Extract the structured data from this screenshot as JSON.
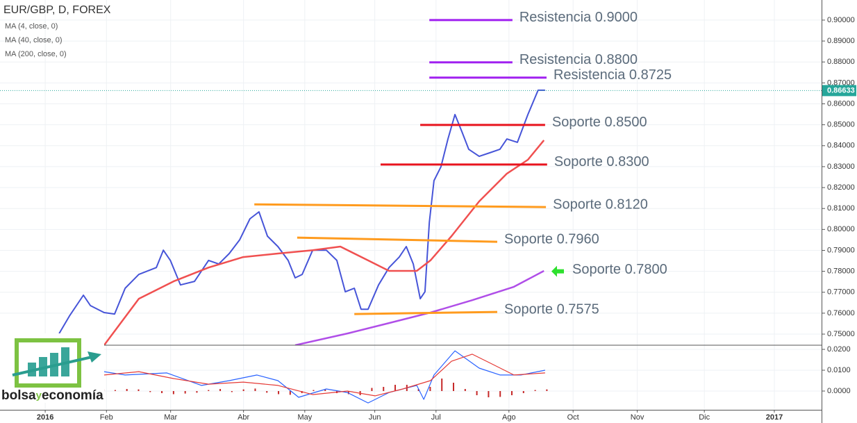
{
  "chart_data": [
    {
      "type": "line",
      "title": "EUR/GBP, D, FOREX",
      "xlim": [
        -15.5,
        266.2
      ],
      "ylim": [
        0.7447,
        0.9096
      ],
      "yticks": [
        {
          "value": 0.75,
          "label": "0.75000"
        },
        {
          "value": 0.76,
          "label": "0.76000"
        },
        {
          "value": 0.77,
          "label": "0.77000"
        },
        {
          "value": 0.78,
          "label": "0.78000"
        },
        {
          "value": 0.79,
          "label": "0.79000"
        },
        {
          "value": 0.8,
          "label": "0.80000"
        },
        {
          "value": 0.81,
          "label": "0.81000"
        },
        {
          "value": 0.82,
          "label": "0.82000"
        },
        {
          "value": 0.83,
          "label": "0.83000"
        },
        {
          "value": 0.84,
          "label": "0.84000"
        },
        {
          "value": 0.85,
          "label": "0.85000"
        },
        {
          "value": 0.86,
          "label": "0.86000"
        },
        {
          "value": 0.87,
          "label": "0.87000"
        },
        {
          "value": 0.88,
          "label": "0.88000"
        },
        {
          "value": 0.89,
          "label": "0.89000"
        },
        {
          "value": 0.9,
          "label": "0.90000"
        }
      ],
      "grid": true,
      "last_value": 0.86633,
      "last_color": "#26a69a",
      "series": [
        {
          "name": "MA (4, close, 0)",
          "color": "#4654d8",
          "x": [
            4.8,
            8.3,
            13.1,
            15.5,
            20.2,
            23.8,
            27.4,
            32.1,
            38.1,
            40.5,
            42.9,
            46.4,
            51.2,
            56,
            59.5,
            63.1,
            66.7,
            70.2,
            73.3,
            76.2,
            79.8,
            83.3,
            85.7,
            88.1,
            91.7,
            96.4,
            100,
            102.9,
            106,
            108.3,
            110.7,
            114.3,
            117.9,
            121.4,
            123.8,
            126.2,
            128.6,
            130.2,
            131.7,
            133.3,
            135.7,
            138.1,
            140.5,
            142.9,
            145.2,
            148.8,
            152.4,
            155.9,
            158.3,
            161.9,
            165.5,
            169,
            171.4
          ],
          "values": [
            0.7503,
            0.7586,
            0.7686,
            0.7636,
            0.7603,
            0.7596,
            0.7719,
            0.7785,
            0.7818,
            0.7901,
            0.7852,
            0.7735,
            0.7752,
            0.7852,
            0.7835,
            0.7885,
            0.7951,
            0.8051,
            0.8084,
            0.7968,
            0.7918,
            0.7852,
            0.7769,
            0.7785,
            0.7901,
            0.7901,
            0.7852,
            0.7702,
            0.7719,
            0.7619,
            0.7619,
            0.7735,
            0.7818,
            0.7868,
            0.7918,
            0.7835,
            0.7669,
            0.7702,
            0.8034,
            0.8233,
            0.83,
            0.8432,
            0.8549,
            0.8466,
            0.8383,
            0.8349,
            0.8366,
            0.8383,
            0.8432,
            0.8416,
            0.8549,
            0.8665,
            0.8665
          ]
        },
        {
          "name": "MA (40, close, 0)",
          "color": "#f05050",
          "x": [
            20.2,
            32.1,
            44,
            56,
            67.9,
            79.8,
            91.7,
            101.2,
            110.7,
            117.9,
            127.4,
            132.1,
            139.3,
            148.8,
            158.3,
            165.5,
            171
          ],
          "values": [
            0.7447,
            0.7669,
            0.7752,
            0.7818,
            0.7868,
            0.7885,
            0.7901,
            0.7918,
            0.7852,
            0.7802,
            0.7802,
            0.7852,
            0.7968,
            0.8134,
            0.8267,
            0.8333,
            0.8426
          ]
        },
        {
          "name": "MA (200, close, 0)",
          "color": "#b04ee8",
          "x": [
            85.7,
            103.6,
            117.9,
            132.1,
            146.4,
            160.7,
            171
          ],
          "values": [
            0.7447,
            0.7503,
            0.7553,
            0.7603,
            0.7662,
            0.7726,
            0.7802
          ]
        }
      ],
      "annotations": [
        {
          "text": "Resistencia 0.9000",
          "x": [
            131.7,
            160.2
          ],
          "y": [
            0.9,
            0.9
          ],
          "color": "#a020f0"
        },
        {
          "text": "Resistencia 0.8800",
          "x": [
            131.7,
            160.2
          ],
          "y": [
            0.8798,
            0.8798
          ],
          "color": "#a020f0"
        },
        {
          "text": "Resistencia 0.8725",
          "x": [
            131.7,
            171.9
          ],
          "y": [
            0.8725,
            0.8725
          ],
          "color": "#a020f0"
        },
        {
          "text": "Soporte 0.8500",
          "x": [
            128.6,
            171.4
          ],
          "y": [
            0.8499,
            0.8499
          ],
          "color": "#e8141e"
        },
        {
          "text": "Soporte 0.8300",
          "x": [
            115,
            172.1
          ],
          "y": [
            0.831,
            0.831
          ],
          "color": "#e8141e"
        },
        {
          "text": "Soporte 0.8120",
          "x": [
            71.7,
            171.7
          ],
          "y": [
            0.812,
            0.8107
          ],
          "color": "#ff9b1e"
        },
        {
          "text": "Soporte 0.7960",
          "x": [
            86.4,
            155
          ],
          "y": [
            0.7961,
            0.7941
          ],
          "color": "#ff9b1e"
        },
        {
          "text": "Soporte 0.7800",
          "x": [
            175
          ],
          "y": [
            0.78
          ],
          "color": "#2ee02e",
          "arrow": true
        },
        {
          "text": "Soporte 0.7575",
          "x": [
            106,
            155
          ],
          "y": [
            0.7596,
            0.7606
          ],
          "color": "#ff9b1e"
        }
      ]
    },
    {
      "type": "line",
      "xlim": [
        -15.5,
        266.2
      ],
      "ylim": [
        -0.009,
        0.022
      ],
      "yticks": [
        {
          "value": 0,
          "label": "0.0000"
        },
        {
          "value": 0.01,
          "label": "0.0100"
        },
        {
          "value": 0.02,
          "label": "0.0200"
        }
      ],
      "xticks": [
        {
          "value": 0,
          "label": "2016"
        },
        {
          "value": 21,
          "label": "Feb"
        },
        {
          "value": 43,
          "label": "Mar"
        },
        {
          "value": 68,
          "label": "Abr"
        },
        {
          "value": 89,
          "label": "May"
        },
        {
          "value": 113,
          "label": "Jun"
        },
        {
          "value": 134,
          "label": "Jul"
        },
        {
          "value": 159,
          "label": "Ago"
        },
        {
          "value": 181,
          "label": "Oct"
        },
        {
          "value": 203,
          "label": "Nov"
        },
        {
          "value": 226,
          "label": "Dic"
        },
        {
          "value": 250,
          "label": "2017"
        }
      ],
      "grid": true,
      "series": [
        {
          "color": "#c62828",
          "style": "histogram",
          "x": [
            20,
            24,
            28,
            32,
            36,
            40,
            44,
            48,
            52,
            56,
            60,
            64,
            68,
            72,
            76,
            80,
            84,
            88,
            92,
            96,
            100,
            104,
            108,
            112,
            116,
            120,
            124,
            128,
            132,
            136,
            140,
            144,
            148,
            152,
            156,
            160,
            164,
            168,
            172
          ],
          "values": [
            0.001,
            0.0005,
            0.001,
            0.0008,
            -0.0005,
            -0.001,
            -0.0015,
            -0.0012,
            -0.0008,
            0.0005,
            0.001,
            -0.0005,
            0.0008,
            0.0012,
            -0.0008,
            -0.0015,
            -0.0018,
            -0.001,
            0.0005,
            0.0008,
            -0.001,
            -0.0015,
            -0.002,
            0.0015,
            0.002,
            0.003,
            0.003,
            0.001,
            0.002,
            0.006,
            0.004,
            0.001,
            -0.002,
            -0.003,
            -0.0028,
            -0.002,
            -0.001,
            0.0005,
            0.0008
          ]
        },
        {
          "color": "#2962ff",
          "x": [
            20.2,
            27.4,
            41.7,
            53.6,
            63.1,
            72.6,
            79.8,
            86.9,
            96.4,
            103.6,
            110.7,
            117.9,
            127.4,
            129.8,
            133.3,
            140.5,
            148.8,
            156,
            163.1,
            171.4
          ],
          "values": [
            0.0093,
            0.0077,
            0.0087,
            0.0027,
            0.005,
            0.0077,
            0.005,
            -0.003,
            0.001,
            -0.0007,
            -0.0057,
            -0.0007,
            0.0027,
            -0.004,
            0.0077,
            0.0193,
            0.011,
            0.0077,
            0.0077,
            0.01
          ]
        },
        {
          "color": "#e53935",
          "x": [
            20.2,
            32.1,
            44,
            56,
            67.9,
            79.8,
            91.7,
            103.6,
            113.1,
            122.6,
            132.1,
            139.3,
            146.4,
            153.6,
            160.7,
            171.4
          ],
          "values": [
            0.0077,
            0.0093,
            0.006,
            0.0033,
            0.0043,
            0.0027,
            -0.0017,
            0,
            -0.0023,
            0.001,
            0.005,
            0.0143,
            0.0177,
            0.0127,
            0.0077,
            0.0087
          ]
        }
      ]
    }
  ],
  "logo": {
    "part1": "bolsa",
    "part2": "y",
    "part3": "economía"
  }
}
